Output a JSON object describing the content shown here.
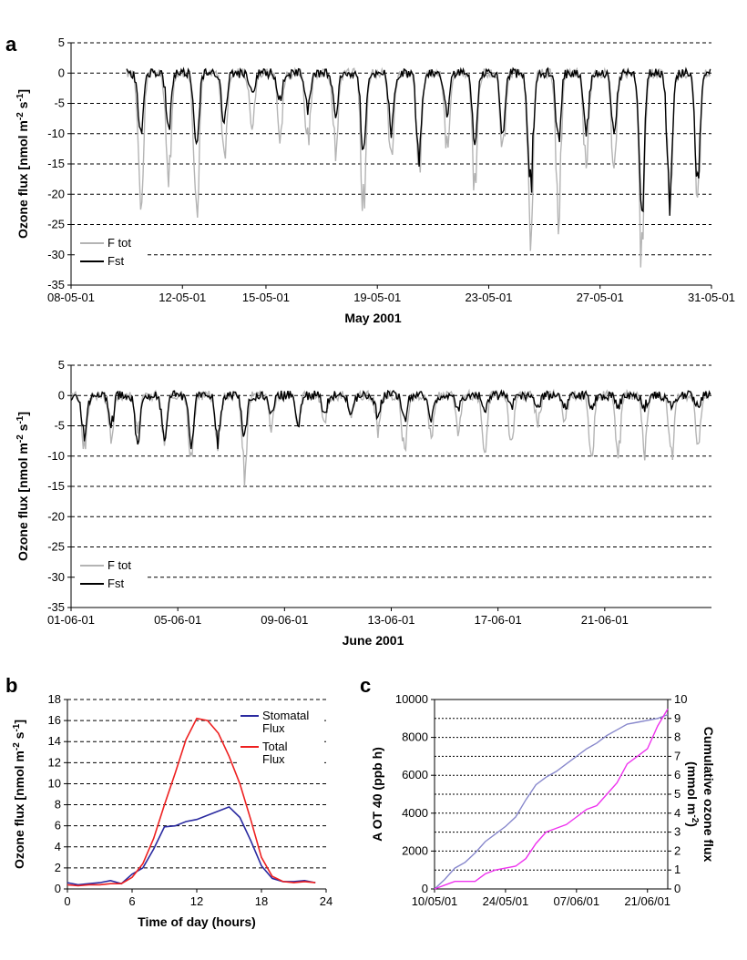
{
  "figure": {
    "panel_letters": [
      "a",
      "b",
      "c"
    ]
  },
  "chart_data": [
    {
      "id": "may",
      "type": "line",
      "title": "",
      "xlabel": "May 2001",
      "ylabel": "Ozone flux [nmol m-2 s-1]",
      "ylabel_parts": {
        "base": "Ozone flux [nmol m",
        "sup1": "-2",
        "mid": " s",
        "sup2": "-1",
        "end": "]"
      },
      "xlim": [
        0,
        23
      ],
      "ylim": [
        -35,
        5
      ],
      "yticks": [
        5,
        0,
        -5,
        -10,
        -15,
        -20,
        -25,
        -30,
        -35
      ],
      "ytick_labels": [
        "5",
        "0",
        "-5",
        "-10",
        "-15",
        "-20",
        "-25",
        "-30",
        "-35"
      ],
      "xticks": [
        0,
        4,
        7,
        11,
        15,
        19,
        23
      ],
      "xtick_labels": [
        "08-05-01",
        "12-05-01",
        "15-05-01",
        "19-05-01",
        "23-05-01",
        "27-05-01",
        "31-05-01"
      ],
      "grid": "horizontal dashed",
      "legend": "bottom-left",
      "series": [
        {
          "name": "F tot",
          "color": "#b4b4b4",
          "daily_min": [
            0,
            0,
            -25,
            -19,
            -28,
            -14,
            -10,
            -11,
            -12,
            -13,
            -23,
            -15,
            -18,
            -13,
            -19,
            -14,
            -27,
            -25,
            -16,
            -17,
            -32,
            -23,
            -22,
            -30,
            -11
          ],
          "day_start": 2,
          "noise_seed": 11
        },
        {
          "name": "Fst",
          "color": "#000000",
          "daily_min": [
            0,
            0,
            -11,
            -10,
            -12,
            -9,
            -4,
            -5,
            -6,
            -7,
            -14,
            -10,
            -15,
            -8,
            -12,
            -10,
            -21,
            -12,
            -10,
            -12,
            -24,
            -22,
            -19,
            -12,
            -5
          ],
          "day_start": 2,
          "noise_seed": 23
        }
      ]
    },
    {
      "id": "june",
      "type": "line",
      "title": "",
      "xlabel": "June 2001",
      "ylabel": "Ozone flux [nmol m-2 s-1]",
      "ylabel_parts": {
        "base": "Ozone flux [nmol m",
        "sup1": "-2",
        "mid": " s",
        "sup2": "-1",
        "end": "]"
      },
      "xlim": [
        0,
        24
      ],
      "ylim": [
        -35,
        5
      ],
      "yticks": [
        5,
        0,
        -5,
        -10,
        -15,
        -20,
        -25,
        -30,
        -35
      ],
      "ytick_labels": [
        "5",
        "0",
        "-5",
        "-10",
        "-15",
        "-20",
        "-25",
        "-30",
        "-35"
      ],
      "xticks": [
        0,
        4,
        8,
        12,
        16,
        20
      ],
      "xtick_labels": [
        "01-06-01",
        "05-06-01",
        "09-06-01",
        "13-06-01",
        "17-06-01",
        "21-06-01"
      ],
      "grid": "horizontal dashed",
      "legend": "bottom-left",
      "series": [
        {
          "name": "F tot",
          "color": "#b4b4b4",
          "daily_min": [
            -10,
            -8,
            -6,
            -8,
            -11,
            -9,
            -14,
            -6,
            -5,
            -5,
            -3,
            -6,
            -10,
            -7,
            -6,
            -10,
            -9,
            -5,
            -4,
            -11,
            -10,
            -10,
            -11,
            -8,
            -7
          ],
          "day_start": 0,
          "noise_seed": 37
        },
        {
          "name": "Fst",
          "color": "#000000",
          "daily_min": [
            -8,
            -5,
            -8,
            -8,
            -8,
            -8,
            -7,
            -3,
            -5,
            -3,
            -3,
            -4,
            -4,
            -4,
            -3,
            -3,
            -2,
            -2,
            -2,
            -2,
            -2,
            -2,
            -2,
            -2,
            -2
          ],
          "day_start": 0,
          "noise_seed": 53
        }
      ]
    },
    {
      "id": "diurnal",
      "type": "line",
      "title": "",
      "xlabel": "Time of day (hours)",
      "ylabel": "Ozone flux [nmol m-2 s-1]",
      "ylabel_parts": {
        "base": "Ozone flux [nmol m",
        "sup1": "-2",
        "mid": " s",
        "sup2": "-1",
        "end": "]"
      },
      "xlim": [
        0,
        24
      ],
      "ylim": [
        0,
        18
      ],
      "xticks": [
        0,
        6,
        12,
        18,
        24
      ],
      "xtick_labels": [
        "0",
        "6",
        "12",
        "18",
        "24"
      ],
      "yticks": [
        0,
        2,
        4,
        6,
        8,
        10,
        12,
        14,
        16,
        18
      ],
      "ytick_labels": [
        "0",
        "2",
        "4",
        "6",
        "8",
        "10",
        "12",
        "14",
        "16",
        "18"
      ],
      "grid": "horizontal dashed",
      "legend": "top-right",
      "x": [
        0,
        1,
        2,
        3,
        4,
        5,
        6,
        7,
        8,
        9,
        10,
        11,
        12,
        13,
        14,
        15,
        16,
        17,
        18,
        19,
        20,
        21,
        22,
        23
      ],
      "series": [
        {
          "name": "Stomatal Flux",
          "legend_lines": [
            "Stomatal",
            "Flux"
          ],
          "color": "#2a2aa0",
          "values": [
            0.6,
            0.4,
            0.5,
            0.6,
            0.8,
            0.5,
            1.4,
            2.0,
            3.8,
            5.9,
            6.0,
            6.4,
            6.6,
            7.0,
            7.4,
            7.8,
            6.8,
            4.6,
            2.2,
            1.0,
            0.7,
            0.7,
            0.8,
            0.6
          ]
        },
        {
          "name": "Total Flux",
          "legend_lines": [
            "Total",
            "Flux"
          ],
          "color": "#ee2020",
          "values": [
            0.4,
            0.3,
            0.4,
            0.4,
            0.5,
            0.5,
            1.1,
            2.4,
            4.8,
            8.0,
            11.0,
            14.2,
            16.2,
            16.0,
            14.8,
            12.6,
            10.0,
            6.6,
            3.0,
            1.2,
            0.7,
            0.6,
            0.7,
            0.6
          ]
        }
      ]
    },
    {
      "id": "cumulative",
      "type": "line",
      "title": "",
      "xlabel": "",
      "ylabel": "A OT 40 (ppb h)",
      "y2label_lines": [
        "Cumulative ozone flux",
        "(mmol m-2)"
      ],
      "y2label_parts": {
        "line1": "Cumulative ozone flux",
        "line2_base": "(mmol m",
        "line2_sup": "-2",
        "line2_end": ")"
      },
      "xlim": [
        0,
        46
      ],
      "ylim": [
        0,
        10000
      ],
      "y2lim": [
        0,
        10
      ],
      "xticks": [
        0,
        14,
        28,
        42
      ],
      "xtick_labels": [
        "10/05/01",
        "24/05/01",
        "07/06/01",
        "21/06/01"
      ],
      "yticks": [
        0,
        2000,
        4000,
        6000,
        8000,
        10000
      ],
      "ytick_labels": [
        "0",
        "2000",
        "4000",
        "6000",
        "8000",
        "10000"
      ],
      "y2ticks": [
        0,
        1,
        2,
        3,
        4,
        5,
        6,
        7,
        8,
        9,
        10
      ],
      "y2tick_labels": [
        "0",
        "1",
        "2",
        "3",
        "4",
        "5",
        "6",
        "7",
        "8",
        "9",
        "10"
      ],
      "grid": "horizontal dotted",
      "series": [
        {
          "name": "AOT40",
          "axis": "left",
          "color": "#8888cc",
          "x": [
            0,
            2,
            4,
            6,
            8,
            10,
            12,
            14,
            16,
            18,
            20,
            22,
            24,
            26,
            28,
            30,
            32,
            34,
            36,
            38,
            40,
            42,
            44,
            46
          ],
          "values": [
            0,
            500,
            1100,
            1400,
            1900,
            2500,
            2900,
            3300,
            3800,
            4700,
            5500,
            5900,
            6200,
            6600,
            7000,
            7400,
            7700,
            8100,
            8400,
            8700,
            8800,
            8900,
            9000,
            9200
          ]
        },
        {
          "name": "Cumulative ozone flux",
          "axis": "right",
          "color": "#ee33ee",
          "x": [
            0,
            2,
            4,
            6,
            8,
            10,
            12,
            14,
            16,
            18,
            20,
            22,
            24,
            26,
            28,
            30,
            32,
            34,
            36,
            38,
            40,
            42,
            44,
            46
          ],
          "values": [
            0,
            0.2,
            0.4,
            0.4,
            0.4,
            0.8,
            1.0,
            1.1,
            1.2,
            1.6,
            2.4,
            3.0,
            3.2,
            3.4,
            3.8,
            4.2,
            4.4,
            5.0,
            5.6,
            6.6,
            7.0,
            7.4,
            8.6,
            9.5
          ]
        }
      ]
    }
  ]
}
